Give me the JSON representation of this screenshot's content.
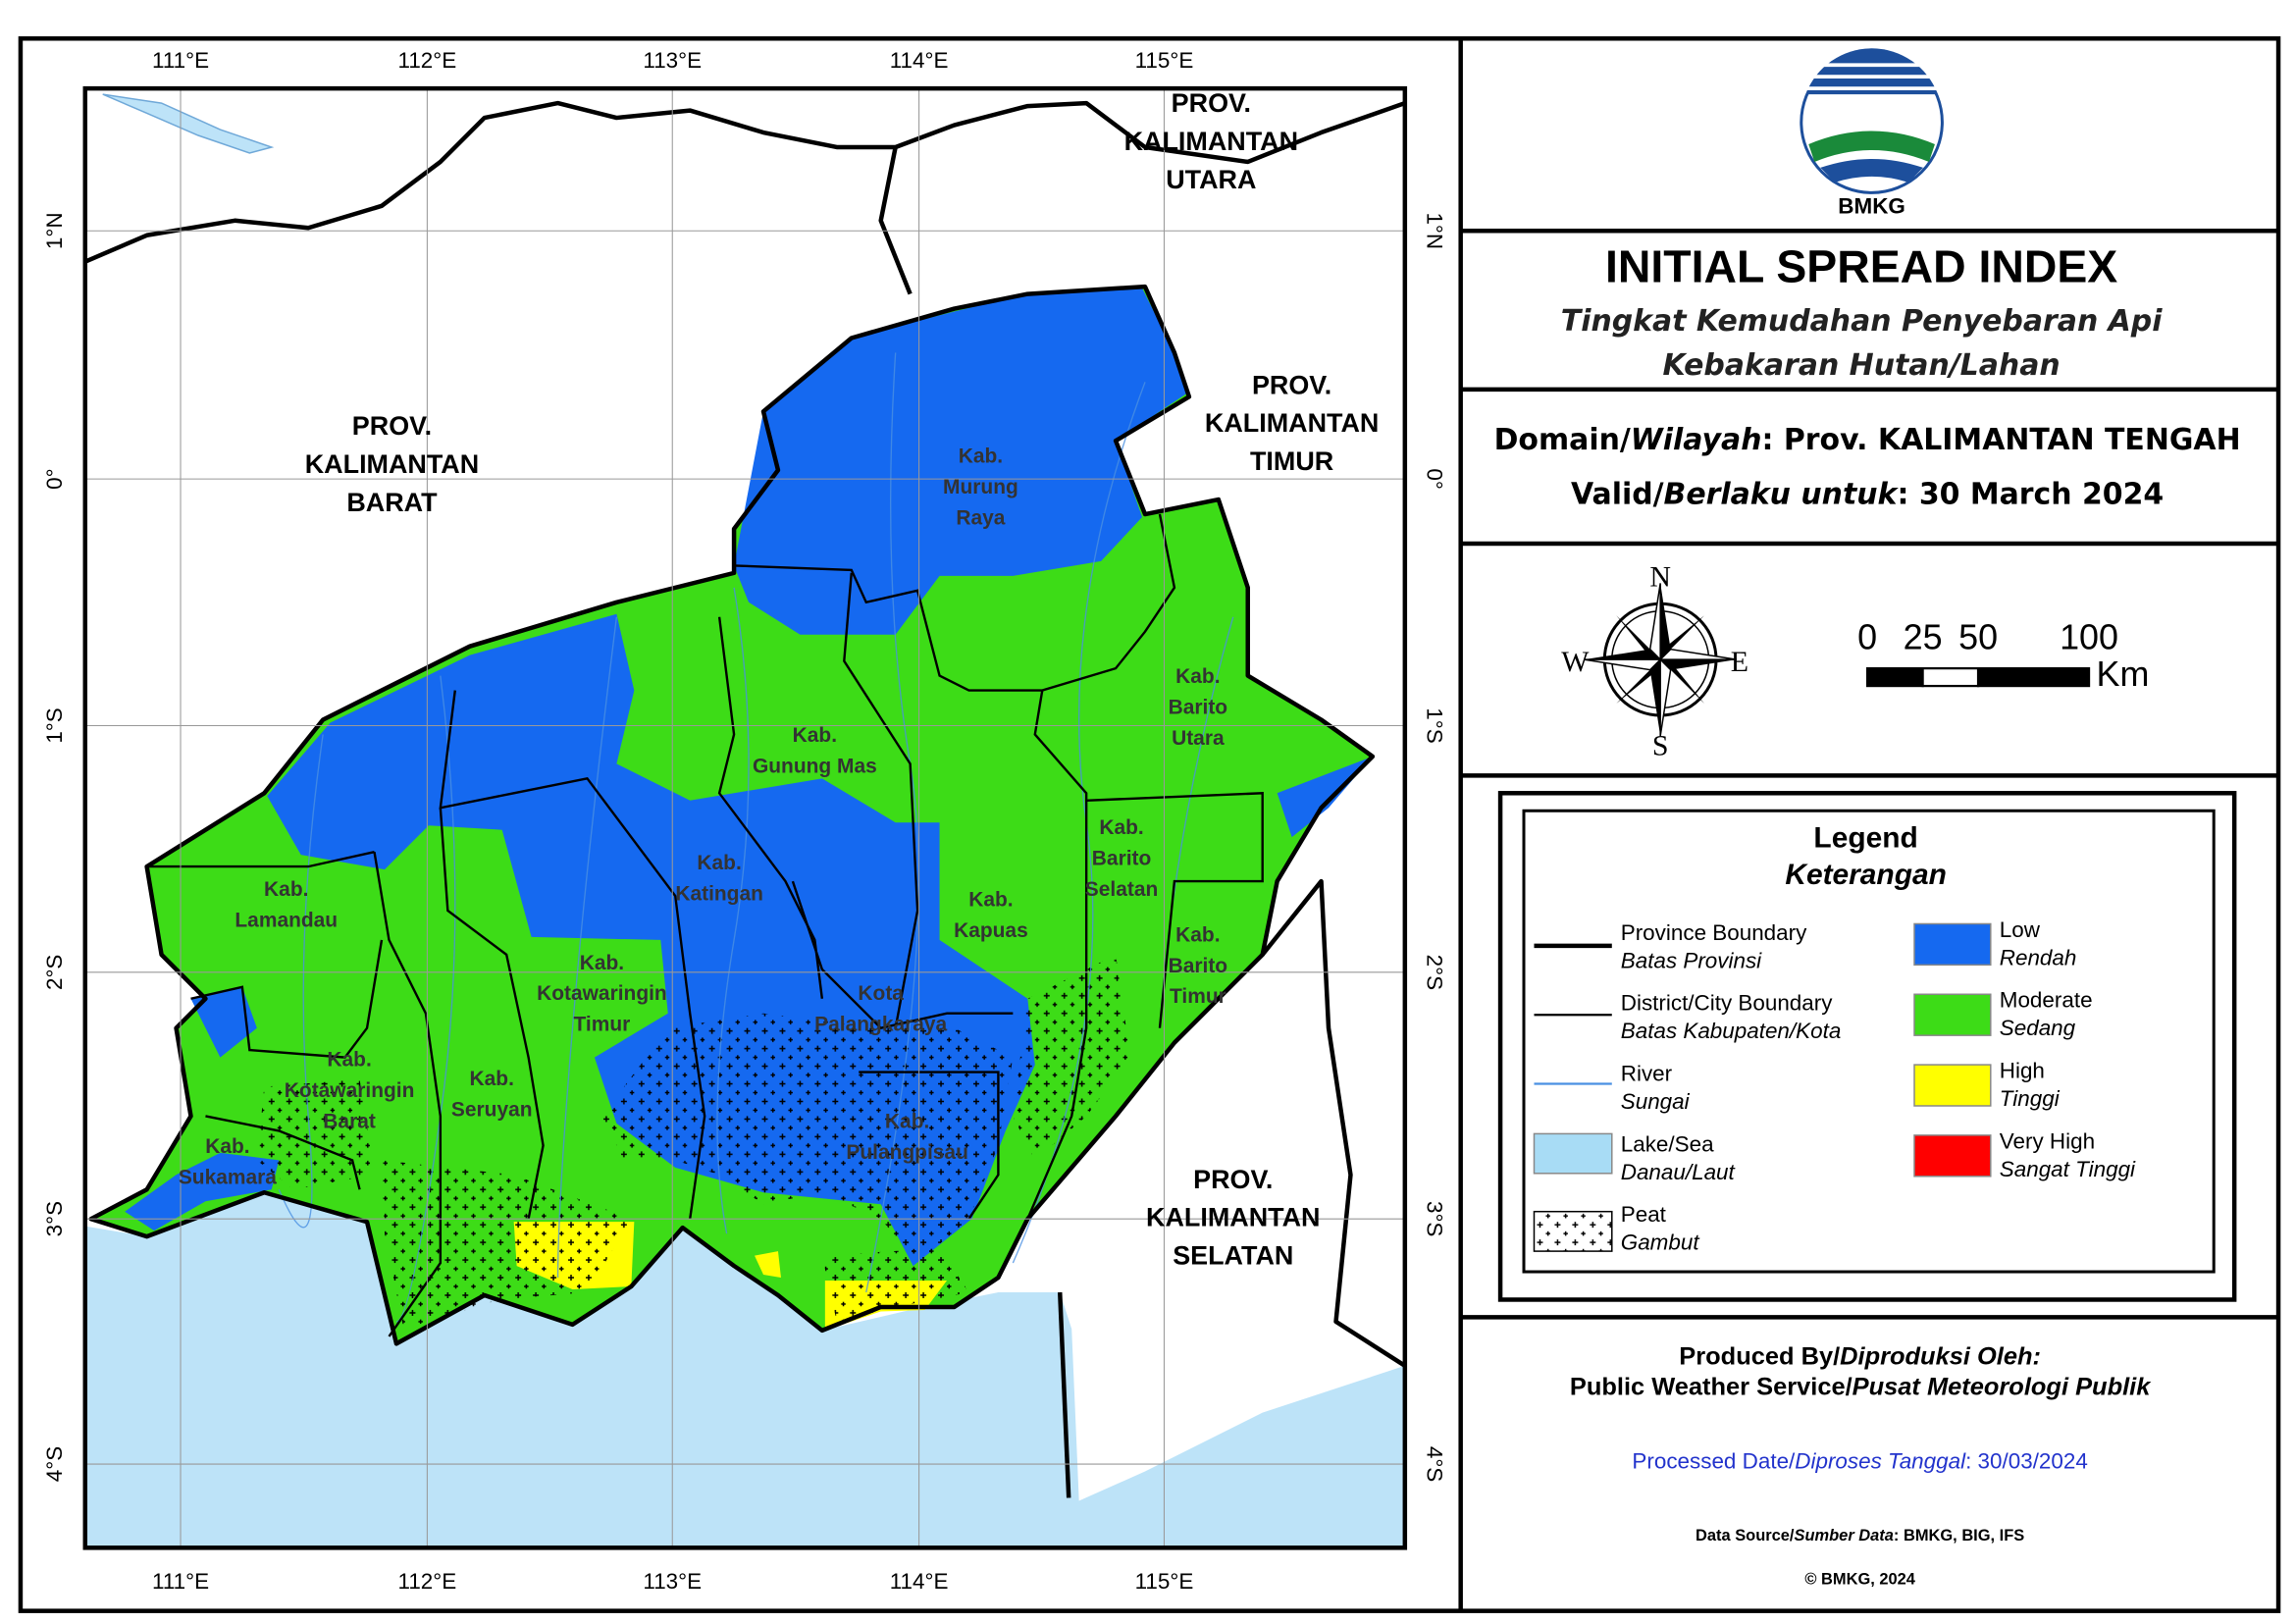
{
  "map": {
    "lon_labels": [
      "111°E",
      "112°E",
      "113°E",
      "114°E",
      "115°E"
    ],
    "lat_labels": [
      "1°N",
      "0°",
      "1°S",
      "2°S",
      "3°S",
      "4°S"
    ],
    "province_labels": [
      [
        "PROV.",
        "KALIMANTAN",
        "BARAT"
      ],
      [
        "PROV.",
        "KALIMANTAN",
        "UTARA"
      ],
      [
        "PROV.",
        "KALIMANTAN",
        "TIMUR"
      ],
      [
        "PROV.",
        "KALIMANTAN",
        "SELATAN"
      ]
    ],
    "regency_labels": [
      [
        "Kab.",
        "Murung",
        "Raya"
      ],
      [
        "Kab.",
        "Barito",
        "Utara"
      ],
      [
        "Kab.",
        "Gunung Mas"
      ],
      [
        "Kab.",
        "Katingan"
      ],
      [
        "Kab.",
        "Barito",
        "Selatan"
      ],
      [
        "Kab.",
        "Kapuas"
      ],
      [
        "Kab.",
        "Barito",
        "Timur"
      ],
      [
        "Kab.",
        "Lamandau"
      ],
      [
        "Kab.",
        "Kotawaringin",
        "Timur"
      ],
      [
        "Kota",
        "Palangkaraya"
      ],
      [
        "Kab.",
        "Kotawaringin",
        "Barat"
      ],
      [
        "Kab.",
        "Seruyan"
      ],
      [
        "Kab.",
        "Pulangpisau"
      ],
      [
        "Kab.",
        "Sukamara"
      ]
    ]
  },
  "header": {
    "logo_text": "BMKG",
    "title": "INITIAL SPREAD INDEX",
    "subtitle": [
      "Tingkat Kemudahan Penyebaran Api",
      "Kebakaran Hutan/Lahan"
    ]
  },
  "domain": {
    "label": "Domain/",
    "label_id": "Wilayah",
    "value": ": Prov. KALIMANTAN TENGAH"
  },
  "valid": {
    "label": "Valid/",
    "label_id": "Berlaku untuk",
    "value": ": 30 March 2024"
  },
  "compass": {
    "n": "N",
    "e": "E",
    "s": "S",
    "w": "W"
  },
  "scale": {
    "ticks": [
      0,
      25,
      50,
      100
    ],
    "unit": "Km"
  },
  "legend": {
    "title": "Legend",
    "subtitle": "Keterangan",
    "lines": [
      {
        "name": "Province Boundary",
        "name_id": "Batas Provinsi"
      },
      {
        "name": "District/City Boundary",
        "name_id": "Batas Kabupaten/Kota"
      },
      {
        "name": "River",
        "name_id": "Sungai"
      },
      {
        "name": "Lake/Sea",
        "name_id": "Danau/Laut"
      },
      {
        "name": "Peat",
        "name_id": "Gambut"
      }
    ],
    "classes": [
      {
        "name": "Low",
        "name_id": "Rendah",
        "color": "#1569f0"
      },
      {
        "name": "Moderate",
        "name_id": "Sedang",
        "color": "#3ddc17"
      },
      {
        "name": "High",
        "name_id": "Tinggi",
        "color": "#ffff00"
      },
      {
        "name": "Very High",
        "name_id": "Sangat Tinggi",
        "color": "#ff0000"
      }
    ]
  },
  "credits": {
    "produced_label": "Produced By/",
    "produced_label_id": "Diproduksi Oleh:",
    "producer": "Public Weather Service/",
    "producer_id": "Pusat Meteorologi Publik",
    "processed_label": "Processed Date/",
    "processed_label_id": "Diproses Tanggal",
    "processed_value": ": 30/03/2024",
    "source_label": "Data Source/",
    "source_label_id": "Sumber Data",
    "source_value": ": BMKG, BIG, IFS",
    "copyright": "© BMKG, 2024"
  }
}
